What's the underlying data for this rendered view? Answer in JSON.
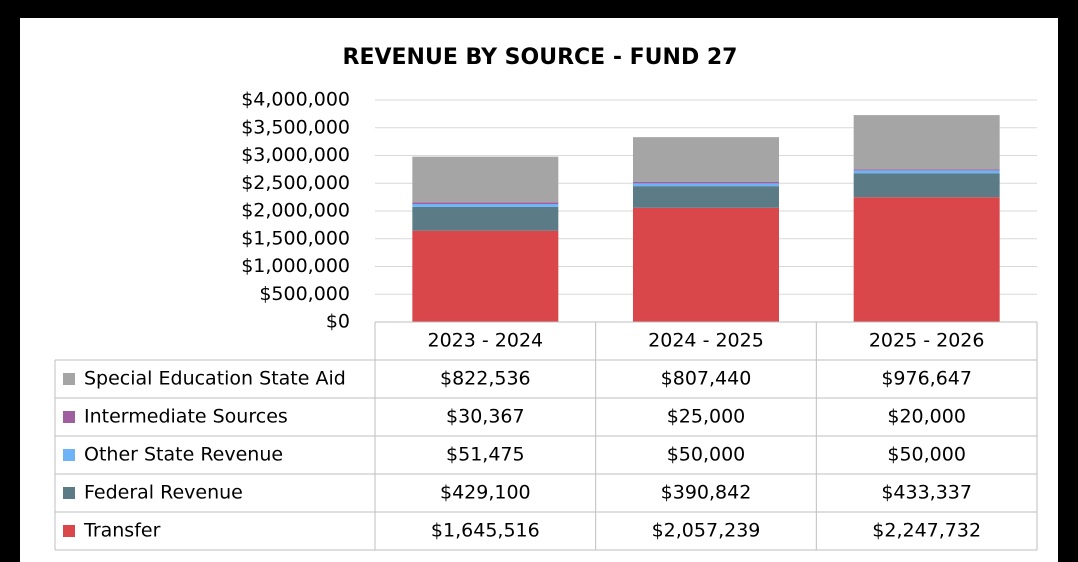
{
  "chart_data": {
    "type": "bar",
    "stacked": true,
    "title": "REVENUE BY SOURCE - FUND 27",
    "categories": [
      "2023 - 2024",
      "2024 - 2025",
      "2025 - 2026"
    ],
    "series": [
      {
        "name": "Special Education State Aid",
        "color": "#a5a5a5",
        "values": [
          822536,
          807440,
          976647
        ],
        "value_labels": [
          "$822,536",
          "$807,440",
          "$976,647"
        ]
      },
      {
        "name": "Intermediate Sources",
        "color": "#9e5ea0",
        "values": [
          30367,
          25000,
          20000
        ],
        "value_labels": [
          "$30,367",
          "$25,000",
          "$20,000"
        ]
      },
      {
        "name": "Other State Revenue",
        "color": "#6cb4f5",
        "values": [
          51475,
          50000,
          50000
        ],
        "value_labels": [
          "$51,475",
          "$50,000",
          "$50,000"
        ]
      },
      {
        "name": "Federal Revenue",
        "color": "#5b7c87",
        "values": [
          429100,
          390842,
          433337
        ],
        "value_labels": [
          "$429,100",
          "$390,842",
          "$433,337"
        ]
      },
      {
        "name": "Transfer",
        "color": "#d9474b",
        "values": [
          1645516,
          2057239,
          2247732
        ],
        "value_labels": [
          "$1,645,516",
          "$2,057,239",
          "$2,247,732"
        ]
      }
    ],
    "ylim": [
      0,
      4000000
    ],
    "yticks": [
      {
        "value": 0,
        "label": "$0"
      },
      {
        "value": 500000,
        "label": "$500,000"
      },
      {
        "value": 1000000,
        "label": "$1,000,000"
      },
      {
        "value": 1500000,
        "label": "$1,500,000"
      },
      {
        "value": 2000000,
        "label": "$2,000,000"
      },
      {
        "value": 2500000,
        "label": "$2,500,000"
      },
      {
        "value": 3000000,
        "label": "$3,000,000"
      },
      {
        "value": 3500000,
        "label": "$3,500,000"
      },
      {
        "value": 4000000,
        "label": "$4,000,000"
      }
    ],
    "grid": true
  }
}
